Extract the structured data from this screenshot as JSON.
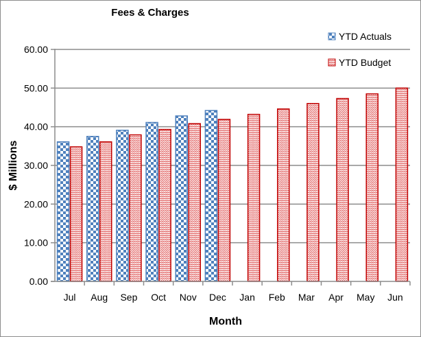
{
  "chart_data": {
    "type": "bar",
    "title": "Fees & Charges",
    "xlabel": "Month",
    "ylabel": "$ Millions",
    "ylim": [
      0,
      60
    ],
    "yticks": [
      "0.00",
      "10.00",
      "20.00",
      "30.00",
      "40.00",
      "50.00",
      "60.00"
    ],
    "grid": true,
    "legend_position": "top-right",
    "categories": [
      "Jul",
      "Aug",
      "Sep",
      "Oct",
      "Nov",
      "Dec",
      "Jan",
      "Feb",
      "Mar",
      "Apr",
      "May",
      "Jun"
    ],
    "series": [
      {
        "name": "YTD Actuals",
        "color": "#4f81bd",
        "pattern": "checkerboard",
        "values": [
          36.1,
          37.5,
          39.1,
          41.1,
          42.8,
          44.2,
          null,
          null,
          null,
          null,
          null,
          null
        ]
      },
      {
        "name": "YTD Budget",
        "color": "#c00000",
        "pattern": "zigzag",
        "values": [
          34.8,
          36.1,
          37.9,
          39.3,
          40.8,
          41.9,
          43.2,
          44.6,
          46.0,
          47.3,
          48.5,
          50.0
        ]
      }
    ]
  }
}
